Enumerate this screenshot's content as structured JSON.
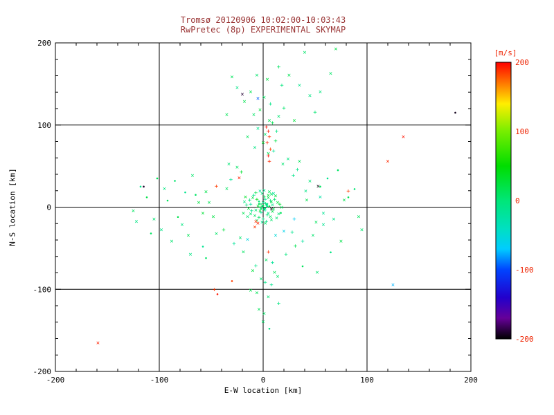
{
  "colors": {
    "title": "#993333",
    "colorbar_label": "#ee2200",
    "axis": "#000000",
    "background": "#ffffff"
  },
  "chart_data": {
    "type": "scatter",
    "title": "Tromsø 20120906 10:02:00-10:03:43",
    "subtitle": "RwPretec (8p) EXPERIMENTAL SKYMAP",
    "xlabel": "E-W location [km]",
    "ylabel": "N-S location [km]",
    "xlim": [
      -200,
      200
    ],
    "ylim": [
      -200,
      200
    ],
    "xticks": [
      -200,
      -100,
      0,
      100,
      200
    ],
    "yticks": [
      -200,
      -100,
      0,
      100,
      200
    ],
    "grid": true,
    "colorbar": {
      "label": "[m/s]",
      "ticks": [
        200,
        100,
        0,
        -100,
        -200
      ],
      "range": [
        -200,
        200
      ]
    },
    "colormap": [
      [
        200,
        "#ff0000"
      ],
      [
        170,
        "#ff7700"
      ],
      [
        140,
        "#ffee00"
      ],
      [
        100,
        "#77ee00"
      ],
      [
        50,
        "#00dd00"
      ],
      [
        0,
        "#00e678"
      ],
      [
        -40,
        "#00e0c0"
      ],
      [
        -70,
        "#00ccff"
      ],
      [
        -100,
        "#0044ff"
      ],
      [
        -140,
        "#2200cc"
      ],
      [
        -170,
        "#660099"
      ],
      [
        -200,
        "#000000"
      ]
    ],
    "points": [
      [
        -2,
        3,
        8,
        "x"
      ],
      [
        5,
        -8,
        -5,
        "x"
      ],
      [
        1,
        12,
        15,
        "+"
      ],
      [
        -7,
        -4,
        3,
        "x"
      ],
      [
        3,
        2,
        -12,
        "+"
      ],
      [
        8,
        6,
        22,
        "x"
      ],
      [
        -12,
        -9,
        5,
        "x"
      ],
      [
        0,
        -15,
        -8,
        "+"
      ],
      [
        6,
        18,
        12,
        "x"
      ],
      [
        -4,
        7,
        0,
        "."
      ],
      [
        10,
        -3,
        18,
        "x"
      ],
      [
        -9,
        14,
        -15,
        "+"
      ],
      [
        2,
        -20,
        7,
        "x"
      ],
      [
        14,
        5,
        25,
        "x"
      ],
      [
        -16,
        2,
        -3,
        "+"
      ],
      [
        7,
        -12,
        10,
        "x"
      ],
      [
        -3,
        19,
        -20,
        "x"
      ],
      [
        11,
        9,
        5,
        "+"
      ],
      [
        -6,
        -17,
        14,
        "x"
      ],
      [
        4,
        4,
        -7,
        "."
      ],
      [
        9,
        -6,
        20,
        "x"
      ],
      [
        -13,
        8,
        2,
        "+"
      ],
      [
        1,
        -2,
        -18,
        "x"
      ],
      [
        -8,
        -11,
        9,
        "x"
      ],
      [
        16,
        3,
        28,
        "+"
      ],
      [
        -1,
        16,
        -4,
        "x"
      ],
      [
        5,
        11,
        16,
        "x"
      ],
      [
        -11,
        -5,
        -10,
        "+"
      ],
      [
        13,
        -14,
        6,
        "x"
      ],
      [
        -5,
        1,
        30,
        "x"
      ],
      [
        2,
        9,
        -14,
        "+"
      ],
      [
        -15,
        -12,
        4,
        "x"
      ],
      [
        8,
        15,
        11,
        "x"
      ],
      [
        -2,
        -7,
        -25,
        "+"
      ],
      [
        18,
        -1,
        13,
        "x"
      ],
      [
        -10,
        11,
        21,
        "x"
      ],
      [
        3,
        -18,
        -6,
        "+"
      ],
      [
        6,
        1,
        17,
        "."
      ],
      [
        -18,
        6,
        -2,
        "x"
      ],
      [
        12,
        13,
        24,
        "x"
      ],
      [
        -4,
        -13,
        8,
        "+"
      ],
      [
        0,
        5,
        -16,
        "x"
      ],
      [
        15,
        -9,
        3,
        "x"
      ],
      [
        -7,
        17,
        19,
        "+"
      ],
      [
        9,
        2,
        -9,
        "x"
      ],
      [
        -14,
        -2,
        26,
        "x"
      ],
      [
        4,
        -10,
        1,
        "+"
      ],
      [
        1,
        20,
        -13,
        "x"
      ],
      [
        -19,
        -8,
        15,
        "x"
      ],
      [
        7,
        7,
        -1,
        "+"
      ],
      [
        -3,
        -5,
        35,
        "x"
      ],
      [
        10,
        16,
        -22,
        "x"
      ],
      [
        -6,
        9,
        40,
        "+"
      ],
      [
        17,
        -7,
        12,
        "."
      ],
      [
        -1,
        -19,
        -11,
        "x"
      ],
      [
        5,
        14,
        27,
        "x"
      ],
      [
        -12,
        3,
        -17,
        "+"
      ],
      [
        8,
        -16,
        6,
        "x"
      ],
      [
        -17,
        12,
        33,
        "x"
      ],
      [
        2,
        -4,
        -28,
        "+"
      ],
      [
        -1,
        1,
        5,
        "."
      ],
      [
        2,
        -1,
        -3,
        "."
      ],
      [
        0,
        2,
        10,
        "."
      ],
      [
        -2,
        -2,
        7,
        "."
      ],
      [
        3,
        3,
        -5,
        "."
      ],
      [
        -3,
        0,
        12,
        "."
      ],
      [
        1,
        -3,
        2,
        "."
      ],
      [
        4,
        1,
        -8,
        "."
      ],
      [
        -4,
        4,
        15,
        "."
      ],
      [
        2,
        5,
        -2,
        "."
      ],
      [
        -35,
        22,
        10,
        "x"
      ],
      [
        28,
        -31,
        -12,
        "+"
      ],
      [
        42,
        8,
        18,
        "x"
      ],
      [
        -22,
        -38,
        5,
        "x"
      ],
      [
        33,
        45,
        -8,
        "+"
      ],
      [
        -48,
        -12,
        22,
        "x"
      ],
      [
        19,
        52,
        3,
        "x"
      ],
      [
        -31,
        33,
        -15,
        "+"
      ],
      [
        51,
        -19,
        12,
        "x"
      ],
      [
        -25,
        48,
        8,
        "x"
      ],
      [
        38,
        -42,
        -20,
        "+"
      ],
      [
        -52,
        5,
        15,
        "x"
      ],
      [
        24,
        58,
        -5,
        "x"
      ],
      [
        -38,
        -28,
        25,
        "+"
      ],
      [
        45,
        31,
        0,
        "x"
      ],
      [
        -19,
        -55,
        10,
        "x"
      ],
      [
        29,
        38,
        -10,
        "+"
      ],
      [
        -55,
        18,
        20,
        "x"
      ],
      [
        48,
        -35,
        5,
        "x"
      ],
      [
        -28,
        -45,
        -18,
        "+"
      ],
      [
        35,
        55,
        14,
        "x"
      ],
      [
        -45,
        -33,
        7,
        "x"
      ],
      [
        22,
        -58,
        -3,
        "+"
      ],
      [
        -58,
        -8,
        28,
        "x"
      ],
      [
        55,
        12,
        -25,
        "x"
      ],
      [
        31,
        -48,
        16,
        "+"
      ],
      [
        -33,
        52,
        2,
        "x"
      ],
      [
        58,
        -22,
        -14,
        "x"
      ],
      [
        -21,
        42,
        30,
        "+"
      ],
      [
        41,
        19,
        -7,
        "x"
      ],
      [
        5,
        65,
        12,
        "x"
      ],
      [
        -8,
        72,
        -5,
        "x"
      ],
      [
        12,
        80,
        20,
        "+"
      ],
      [
        2,
        88,
        8,
        "x"
      ],
      [
        -5,
        95,
        -12,
        "x"
      ],
      [
        9,
        102,
        15,
        "+"
      ],
      [
        15,
        110,
        3,
        "x"
      ],
      [
        -3,
        118,
        25,
        "x"
      ],
      [
        7,
        125,
        -8,
        "+"
      ],
      [
        1,
        133,
        10,
        "x"
      ],
      [
        -12,
        140,
        18,
        "x"
      ],
      [
        18,
        148,
        -3,
        "+"
      ],
      [
        4,
        155,
        22,
        "x"
      ],
      [
        -6,
        160,
        5,
        "x"
      ],
      [
        10,
        68,
        -15,
        "+"
      ],
      [
        0,
        78,
        30,
        "x"
      ],
      [
        -15,
        85,
        12,
        "x"
      ],
      [
        13,
        92,
        -6,
        "+"
      ],
      [
        6,
        105,
        16,
        "x"
      ],
      [
        -9,
        112,
        8,
        "x"
      ],
      [
        3,
        -65,
        10,
        "x"
      ],
      [
        -7,
        -72,
        -8,
        "+"
      ],
      [
        11,
        -80,
        15,
        "x"
      ],
      [
        -2,
        -88,
        5,
        "x"
      ],
      [
        8,
        -95,
        -12,
        "+"
      ],
      [
        -12,
        -102,
        20,
        "x"
      ],
      [
        5,
        -110,
        3,
        "x"
      ],
      [
        15,
        -118,
        -5,
        "+"
      ],
      [
        -4,
        -125,
        12,
        "x"
      ],
      [
        1,
        -130,
        8,
        "x"
      ],
      [
        9,
        -68,
        -18,
        "+"
      ],
      [
        -10,
        -78,
        25,
        "x"
      ],
      [
        14,
        -85,
        6,
        "x"
      ],
      [
        2,
        -92,
        -10,
        "+"
      ],
      [
        -6,
        -105,
        14,
        "x"
      ],
      [
        0,
        -140,
        5,
        "x"
      ],
      [
        6,
        -148,
        -4,
        "."
      ],
      [
        -65,
        15,
        8,
        "."
      ],
      [
        -78,
        -22,
        -5,
        "x"
      ],
      [
        -92,
        8,
        12,
        "."
      ],
      [
        -105,
        -15,
        3,
        "x"
      ],
      [
        -118,
        25,
        -10,
        "."
      ],
      [
        -72,
        -35,
        15,
        "x"
      ],
      [
        -85,
        32,
        5,
        "."
      ],
      [
        -98,
        -28,
        -8,
        "x"
      ],
      [
        -112,
        12,
        20,
        "."
      ],
      [
        -125,
        -5,
        10,
        "x"
      ],
      [
        -58,
        -48,
        -15,
        "."
      ],
      [
        -68,
        38,
        6,
        "x"
      ],
      [
        -82,
        -12,
        18,
        "."
      ],
      [
        -95,
        22,
        -3,
        "x"
      ],
      [
        -108,
        -32,
        9,
        "."
      ],
      [
        -62,
        5,
        22,
        "x"
      ],
      [
        -75,
        18,
        -12,
        "."
      ],
      [
        -88,
        -42,
        4,
        "x"
      ],
      [
        -102,
        35,
        14,
        "."
      ],
      [
        -122,
        -18,
        -6,
        "x"
      ],
      [
        -55,
        -62,
        8,
        "."
      ],
      [
        -70,
        -58,
        -6,
        "x"
      ],
      [
        55,
        25,
        10,
        "."
      ],
      [
        68,
        -15,
        -8,
        "x"
      ],
      [
        82,
        12,
        15,
        "."
      ],
      [
        95,
        -28,
        5,
        "x"
      ],
      [
        62,
        35,
        -12,
        "."
      ],
      [
        75,
        -42,
        20,
        "x"
      ],
      [
        88,
        22,
        3,
        "."
      ],
      [
        58,
        -8,
        -15,
        "x"
      ],
      [
        72,
        45,
        8,
        "."
      ],
      [
        92,
        -12,
        12,
        "x"
      ],
      [
        65,
        -55,
        -5,
        "."
      ],
      [
        78,
        8,
        18,
        "x"
      ],
      [
        38,
        -72,
        12,
        "."
      ],
      [
        52,
        -80,
        4,
        "x"
      ],
      [
        25,
        160,
        15,
        "x"
      ],
      [
        65,
        162,
        8,
        "x"
      ],
      [
        70,
        192,
        20,
        "x"
      ],
      [
        45,
        135,
        -5,
        "x"
      ],
      [
        -30,
        158,
        12,
        "x"
      ],
      [
        20,
        120,
        5,
        "+"
      ],
      [
        35,
        148,
        -10,
        "x"
      ],
      [
        -18,
        128,
        18,
        "x"
      ],
      [
        50,
        115,
        3,
        "+"
      ],
      [
        30,
        105,
        25,
        "x"
      ],
      [
        -25,
        145,
        -8,
        "x"
      ],
      [
        15,
        170,
        10,
        "+"
      ],
      [
        40,
        188,
        6,
        "x"
      ],
      [
        -35,
        112,
        14,
        "x"
      ],
      [
        55,
        140,
        -3,
        "x"
      ],
      [
        5,
        92,
        195,
        "+"
      ],
      [
        6,
        85,
        188,
        "+"
      ],
      [
        4,
        78,
        192,
        "+"
      ],
      [
        7,
        70,
        185,
        "+"
      ],
      [
        5,
        62,
        198,
        "+"
      ],
      [
        6,
        55,
        190,
        "+"
      ],
      [
        -45,
        25,
        185,
        "+"
      ],
      [
        -23,
        35,
        192,
        "x"
      ],
      [
        -7,
        -18,
        188,
        "x"
      ],
      [
        135,
        85,
        195,
        "x"
      ],
      [
        120,
        55,
        190,
        "x"
      ],
      [
        82,
        19,
        185,
        "+"
      ],
      [
        -159,
        -166,
        192,
        "x"
      ],
      [
        -47,
        -101,
        186,
        "+"
      ],
      [
        -44,
        -106,
        194,
        "."
      ],
      [
        5,
        -55,
        189,
        "+"
      ],
      [
        -5,
        -20,
        191,
        "x"
      ],
      [
        -8,
        -25,
        187,
        "x"
      ],
      [
        3,
        97,
        196,
        "+"
      ],
      [
        -30,
        -90,
        184,
        "."
      ],
      [
        -5,
        132,
        -95,
        "x"
      ],
      [
        125,
        -95,
        -75,
        "x"
      ],
      [
        20,
        -30,
        -60,
        "x"
      ],
      [
        -15,
        -40,
        -55,
        "x"
      ],
      [
        30,
        -15,
        -65,
        "+"
      ],
      [
        12,
        -35,
        -50,
        "x"
      ],
      [
        185,
        115,
        -195,
        "."
      ],
      [
        -20,
        137,
        -190,
        "x"
      ],
      [
        53,
        25,
        -198,
        "x"
      ],
      [
        -115,
        25,
        -192,
        "."
      ],
      [
        8,
        -3,
        -196,
        "x"
      ]
    ]
  }
}
